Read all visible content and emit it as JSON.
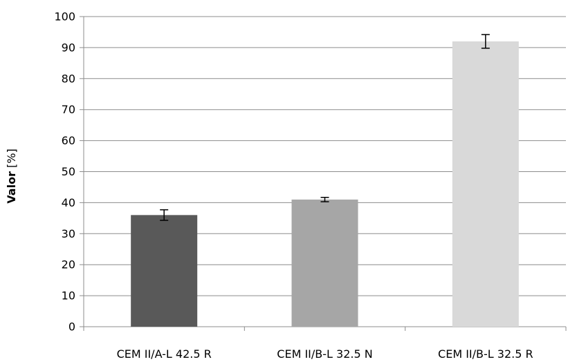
{
  "chart_data": {
    "type": "bar",
    "title": "",
    "xlabel": "",
    "ylabel": "Valor [%]",
    "ylabel_parts": {
      "bold": "Valor",
      "rest": " [%]"
    },
    "ylim": [
      0,
      100
    ],
    "yticks": [
      0,
      10,
      20,
      30,
      40,
      50,
      60,
      70,
      80,
      90,
      100
    ],
    "grid": true,
    "legend": "none",
    "categories": [
      "CEM II/A-L 42.5 R",
      "CEM II/B-L 32.5 N",
      "CEM II/B-L 32.5 R"
    ],
    "values": [
      36,
      41,
      92
    ],
    "error": [
      1.7,
      0.7,
      2.2
    ],
    "colors": [
      "#595959",
      "#a6a6a6",
      "#d9d9d9"
    ]
  }
}
